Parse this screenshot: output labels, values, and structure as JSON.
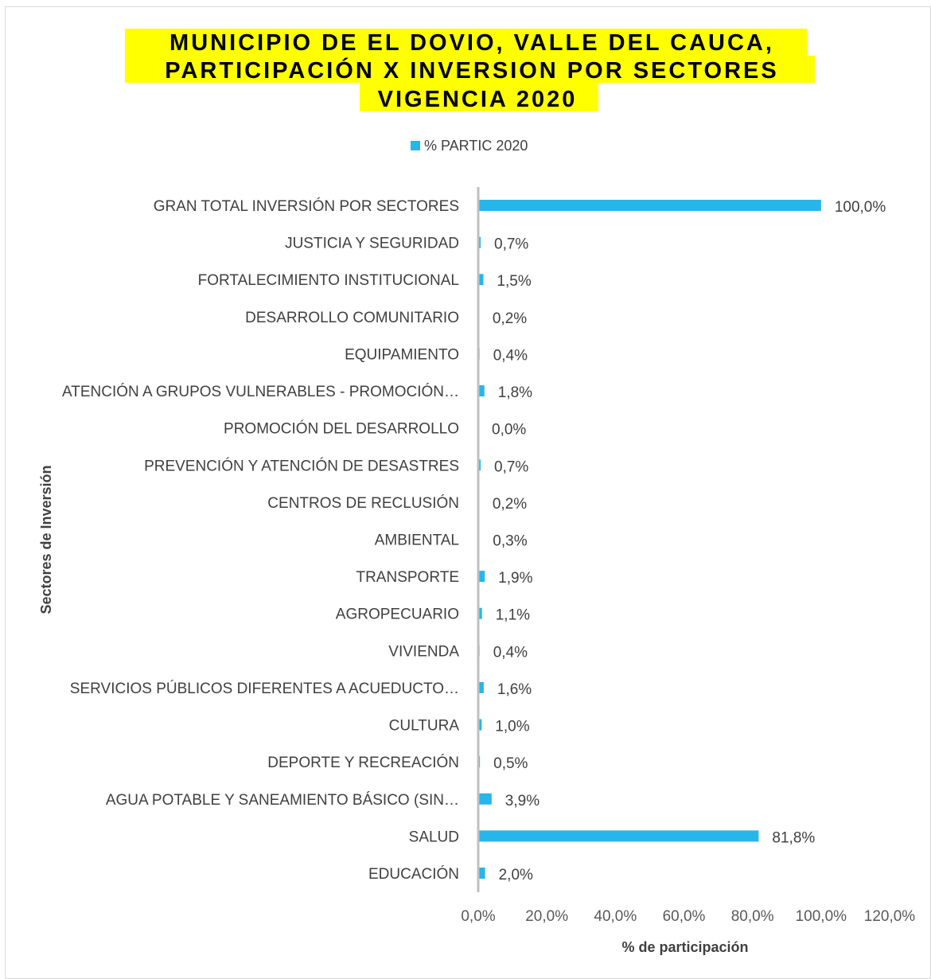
{
  "chart_data": {
    "type": "bar",
    "orientation": "horizontal",
    "title_lines": [
      "MUNICIPIO DE EL DOVIO, VALLE DEL CAUCA,",
      "PARTICIPACIÓN X INVERSION POR SECTORES",
      "VIGENCIA 2020"
    ],
    "legend": {
      "entries": [
        "% PARTIC 2020"
      ],
      "position": "top"
    },
    "xlabel": "% de participación",
    "ylabel": "Sectores de Inversión",
    "xlim": [
      0,
      120
    ],
    "x_ticks": [
      "0,0%",
      "20,0%",
      "40,0%",
      "60,0%",
      "80,0%",
      "100,0%",
      "120,0%"
    ],
    "grid": false,
    "bar_color": "#27b6ea",
    "series": [
      {
        "name": "% PARTIC 2020",
        "points": [
          {
            "category": "GRAN TOTAL INVERSIÓN POR SECTORES",
            "value": 100.0,
            "label": "100,0%"
          },
          {
            "category": "JUSTICIA Y SEGURIDAD",
            "value": 0.7,
            "label": "0,7%"
          },
          {
            "category": "FORTALECIMIENTO INSTITUCIONAL",
            "value": 1.5,
            "label": "1,5%"
          },
          {
            "category": "DESARROLLO COMUNITARIO",
            "value": 0.2,
            "label": "0,2%"
          },
          {
            "category": "EQUIPAMIENTO",
            "value": 0.4,
            "label": "0,4%"
          },
          {
            "category": "ATENCIÓN A GRUPOS VULNERABLES - PROMOCIÓN…",
            "value": 1.8,
            "label": "1,8%"
          },
          {
            "category": "PROMOCIÓN DEL DESARROLLO",
            "value": 0.0,
            "label": "0,0%"
          },
          {
            "category": "PREVENCIÓN Y ATENCIÓN DE DESASTRES",
            "value": 0.7,
            "label": "0,7%"
          },
          {
            "category": "CENTROS DE RECLUSIÓN",
            "value": 0.2,
            "label": "0,2%"
          },
          {
            "category": "AMBIENTAL",
            "value": 0.3,
            "label": "0,3%"
          },
          {
            "category": "TRANSPORTE",
            "value": 1.9,
            "label": "1,9%"
          },
          {
            "category": "AGROPECUARIO",
            "value": 1.1,
            "label": "1,1%"
          },
          {
            "category": "VIVIENDA",
            "value": 0.4,
            "label": "0,4%"
          },
          {
            "category": "SERVICIOS PÚBLICOS DIFERENTES A ACUEDUCTO…",
            "value": 1.6,
            "label": "1,6%"
          },
          {
            "category": "CULTURA",
            "value": 1.0,
            "label": "1,0%"
          },
          {
            "category": "DEPORTE Y RECREACIÓN",
            "value": 0.5,
            "label": "0,5%"
          },
          {
            "category": "AGUA POTABLE Y SANEAMIENTO BÁSICO (SIN…",
            "value": 3.9,
            "label": "3,9%"
          },
          {
            "category": "SALUD",
            "value": 81.8,
            "label": "81,8%"
          },
          {
            "category": "EDUCACIÓN",
            "value": 2.0,
            "label": "2,0%"
          }
        ]
      }
    ]
  }
}
